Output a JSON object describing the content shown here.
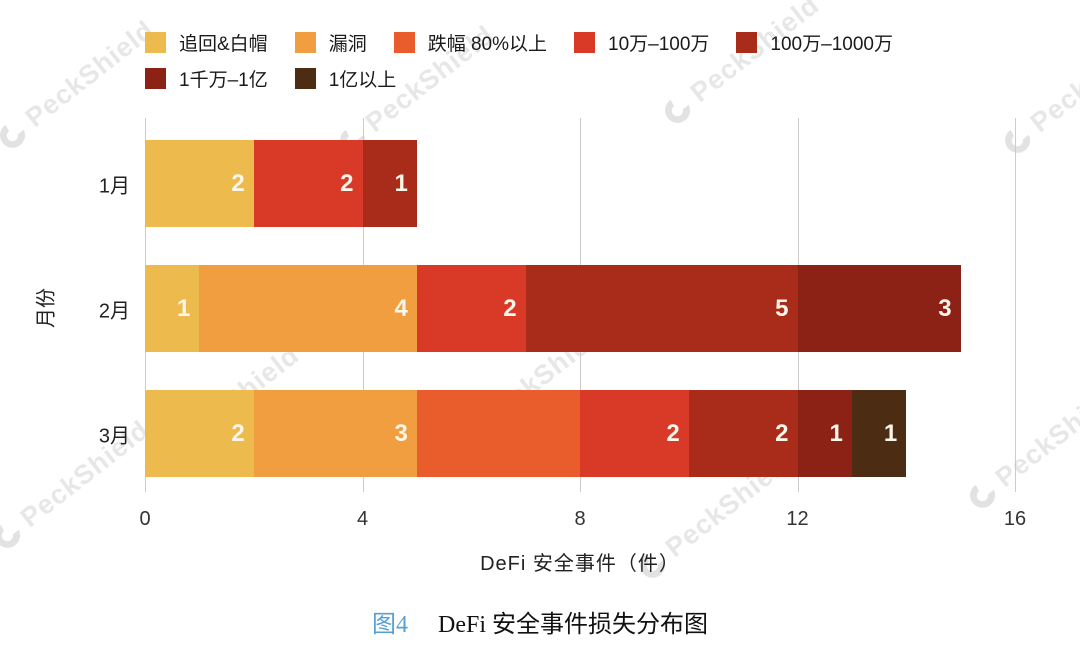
{
  "caption": {
    "figure_label": "图4",
    "title": "DeFi 安全事件损失分布图",
    "figure_label_color": "#57a0d5"
  },
  "watermark": {
    "text": "PeckShield",
    "color": "#e7e7e7"
  },
  "chart_data": {
    "type": "bar",
    "orientation": "horizontal",
    "stacked": true,
    "title": "",
    "xlabel": "DeFi 安全事件（件）",
    "ylabel": "月份",
    "categories": [
      "1月",
      "2月",
      "3月"
    ],
    "xlim": [
      0,
      16
    ],
    "xticks": [
      0,
      4,
      8,
      12,
      16
    ],
    "grid": true,
    "legend_position": "top",
    "legend_rows": [
      [
        0,
        1,
        2,
        3,
        4
      ],
      [
        5,
        6
      ]
    ],
    "series": [
      {
        "name": "追回&白帽",
        "color": "#ecba4d",
        "values": [
          2,
          1,
          2
        ]
      },
      {
        "name": "漏洞",
        "color": "#f19e41",
        "values": [
          0,
          4,
          3
        ]
      },
      {
        "name": "跌幅 80%以上",
        "color": "#e85d2b",
        "values": [
          0,
          0,
          3
        ]
      },
      {
        "name": "10万–100万",
        "color": "#d93a28",
        "values": [
          2,
          2,
          2
        ]
      },
      {
        "name": "100万–1000万",
        "color": "#a92b1a",
        "values": [
          1,
          5,
          2
        ]
      },
      {
        "name": "1千万–1亿",
        "color": "#8c2216",
        "values": [
          0,
          3,
          1
        ]
      },
      {
        "name": "1亿以上",
        "color": "#4c2c13",
        "values": [
          0,
          0,
          1
        ]
      }
    ],
    "category_totals": [
      5,
      15,
      14
    ],
    "unlabeled_segments": [
      {
        "category_index": 2,
        "series_index": 2
      }
    ],
    "bar_label_color": "#fbf6ea"
  }
}
